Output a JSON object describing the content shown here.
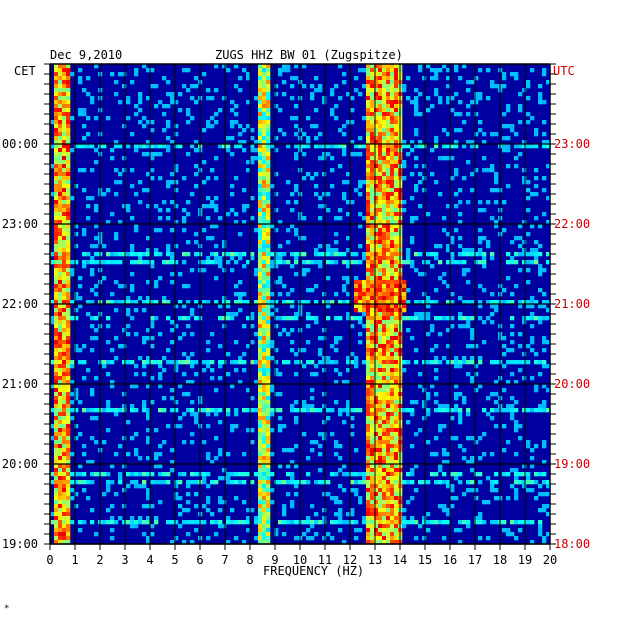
{
  "header": {
    "date": "Dec 9,2010",
    "station": "ZUGS HHZ BW 01 (Zugspitze)",
    "left_zone": "CET",
    "right_zone": "UTC"
  },
  "footer": {
    "mark": "*"
  },
  "colors": {
    "background_blue": "#0000a0",
    "grid": "#000000",
    "utc_text": "#cc0000"
  },
  "chart_data": {
    "type": "heatmap",
    "title": "ZUGS HHZ BW 01 (Zugspitze)",
    "date": "Dec 9,2010",
    "xlabel": "FREQUENCY (HZ)",
    "xlim": [
      0,
      20
    ],
    "x_ticks": [
      "0",
      "1",
      "2",
      "3",
      "4",
      "5",
      "6",
      "7",
      "8",
      "9",
      "10",
      "11",
      "12",
      "13",
      "14",
      "15",
      "16",
      "17",
      "18",
      "19",
      "20"
    ],
    "y_ticks_cet": [
      "00:00",
      "23:00",
      "22:00",
      "21:00",
      "20:00",
      "19:00"
    ],
    "y_ticks_utc": [
      "23:00",
      "22:00",
      "21:00",
      "20:00",
      "19:00",
      "18:00"
    ],
    "y_axis_left": "CET",
    "y_axis_right": "UTC",
    "colormap": "jet (blue low → red high)",
    "grid": true,
    "energy_bands_hz": [
      {
        "range": [
          0.2,
          0.8
        ],
        "level": "high"
      },
      {
        "range": [
          8.4,
          8.8
        ],
        "level": "medium"
      },
      {
        "range": [
          12.6,
          14.0
        ],
        "level": "high"
      }
    ]
  }
}
